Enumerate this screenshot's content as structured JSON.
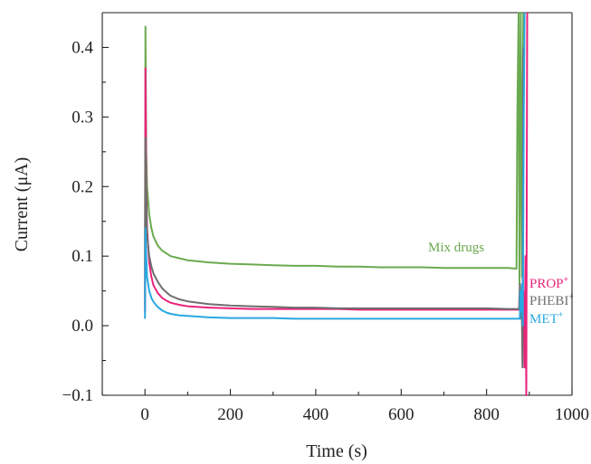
{
  "chart_data": {
    "type": "line",
    "title": "",
    "xlabel": "Time (s)",
    "ylabel": "Current (μA)",
    "xlim": [
      -100,
      1000
    ],
    "ylim": [
      -0.1,
      0.45
    ],
    "xticks": [
      {
        "value": 0,
        "label": "0"
      },
      {
        "value": 200,
        "label": "200"
      },
      {
        "value": 400,
        "label": "400"
      },
      {
        "value": 600,
        "label": "600"
      },
      {
        "value": 800,
        "label": "800"
      },
      {
        "value": 1000,
        "label": "1000"
      }
    ],
    "yticks": [
      {
        "value": -0.1,
        "label": "−0.1"
      },
      {
        "value": 0.0,
        "label": "0.0"
      },
      {
        "value": 0.1,
        "label": "0.1"
      },
      {
        "value": 0.2,
        "label": "0.2"
      },
      {
        "value": 0.3,
        "label": "0.3"
      },
      {
        "value": 0.4,
        "label": "0.4"
      }
    ],
    "grid": false,
    "legend": "none",
    "series": [
      {
        "name": "Mix drugs",
        "label_base": "Mix drugs",
        "label_sup": "",
        "color": "#6aaa4f",
        "x": [
          0,
          1,
          3,
          5,
          10,
          15,
          20,
          30,
          40,
          50,
          60,
          80,
          100,
          150,
          200,
          250,
          300,
          350,
          400,
          450,
          500,
          550,
          600,
          650,
          700,
          750,
          800,
          850,
          870,
          872,
          875,
          877,
          880,
          883,
          886
        ],
        "y": [
          0.08,
          0.43,
          0.25,
          0.2,
          0.16,
          0.14,
          0.128,
          0.115,
          0.108,
          0.104,
          0.1,
          0.097,
          0.094,
          0.091,
          0.089,
          0.088,
          0.087,
          0.086,
          0.086,
          0.085,
          0.085,
          0.084,
          0.084,
          0.084,
          0.083,
          0.083,
          0.083,
          0.083,
          0.082,
          0.3,
          0.45,
          0.06,
          0.45,
          0.07,
          0.45
        ]
      },
      {
        "name": "PROP+",
        "label_base": "PROP",
        "label_sup": "+",
        "color": "#e8247a",
        "x": [
          0,
          1,
          3,
          5,
          10,
          15,
          20,
          30,
          40,
          50,
          60,
          80,
          100,
          150,
          200,
          250,
          300,
          350,
          400,
          450,
          500,
          550,
          600,
          650,
          700,
          750,
          800,
          850,
          878,
          880,
          883,
          886,
          889,
          891,
          893,
          895
        ],
        "y": [
          0.02,
          0.37,
          0.2,
          0.14,
          0.09,
          0.07,
          0.058,
          0.047,
          0.04,
          0.036,
          0.033,
          0.03,
          0.028,
          0.026,
          0.025,
          0.024,
          0.024,
          0.024,
          0.024,
          0.024,
          0.023,
          0.023,
          0.023,
          0.023,
          0.023,
          0.023,
          0.023,
          0.023,
          0.023,
          0.03,
          0.02,
          0.05,
          -0.06,
          0.1,
          -0.1,
          0.45
        ]
      },
      {
        "name": "PHEBI+",
        "label_base": "PHEBI",
        "label_sup": "+",
        "color": "#6e6e6e",
        "x": [
          0,
          1,
          3,
          5,
          10,
          15,
          20,
          30,
          40,
          50,
          60,
          80,
          100,
          150,
          200,
          250,
          300,
          350,
          400,
          450,
          500,
          550,
          600,
          650,
          700,
          750,
          800,
          850,
          876,
          878,
          880,
          882,
          884,
          886
        ],
        "y": [
          0.03,
          0.27,
          0.18,
          0.13,
          0.1,
          0.085,
          0.075,
          0.063,
          0.054,
          0.048,
          0.043,
          0.038,
          0.035,
          0.031,
          0.029,
          0.028,
          0.027,
          0.026,
          0.026,
          0.025,
          0.025,
          0.025,
          0.025,
          0.025,
          0.025,
          0.025,
          0.025,
          0.024,
          0.024,
          0.06,
          0.01,
          0.05,
          -0.06,
          0.4
        ]
      },
      {
        "name": "MET+",
        "label_base": "MET",
        "label_sup": "+",
        "color": "#29a8e0",
        "x": [
          0,
          1,
          3,
          5,
          10,
          15,
          20,
          30,
          40,
          50,
          60,
          80,
          100,
          150,
          200,
          250,
          300,
          350,
          400,
          450,
          500,
          550,
          600,
          650,
          700,
          750,
          800,
          850,
          878,
          879,
          881,
          883,
          885,
          887,
          889
        ],
        "y": [
          0.01,
          0.14,
          0.1,
          0.07,
          0.05,
          0.04,
          0.034,
          0.027,
          0.022,
          0.019,
          0.017,
          0.015,
          0.014,
          0.012,
          0.011,
          0.011,
          0.011,
          0.01,
          0.01,
          0.01,
          0.01,
          0.01,
          0.01,
          0.01,
          0.01,
          0.01,
          0.01,
          0.01,
          0.01,
          0.05,
          0.02,
          0.06,
          0.0,
          0.3,
          0.45
        ]
      }
    ]
  }
}
